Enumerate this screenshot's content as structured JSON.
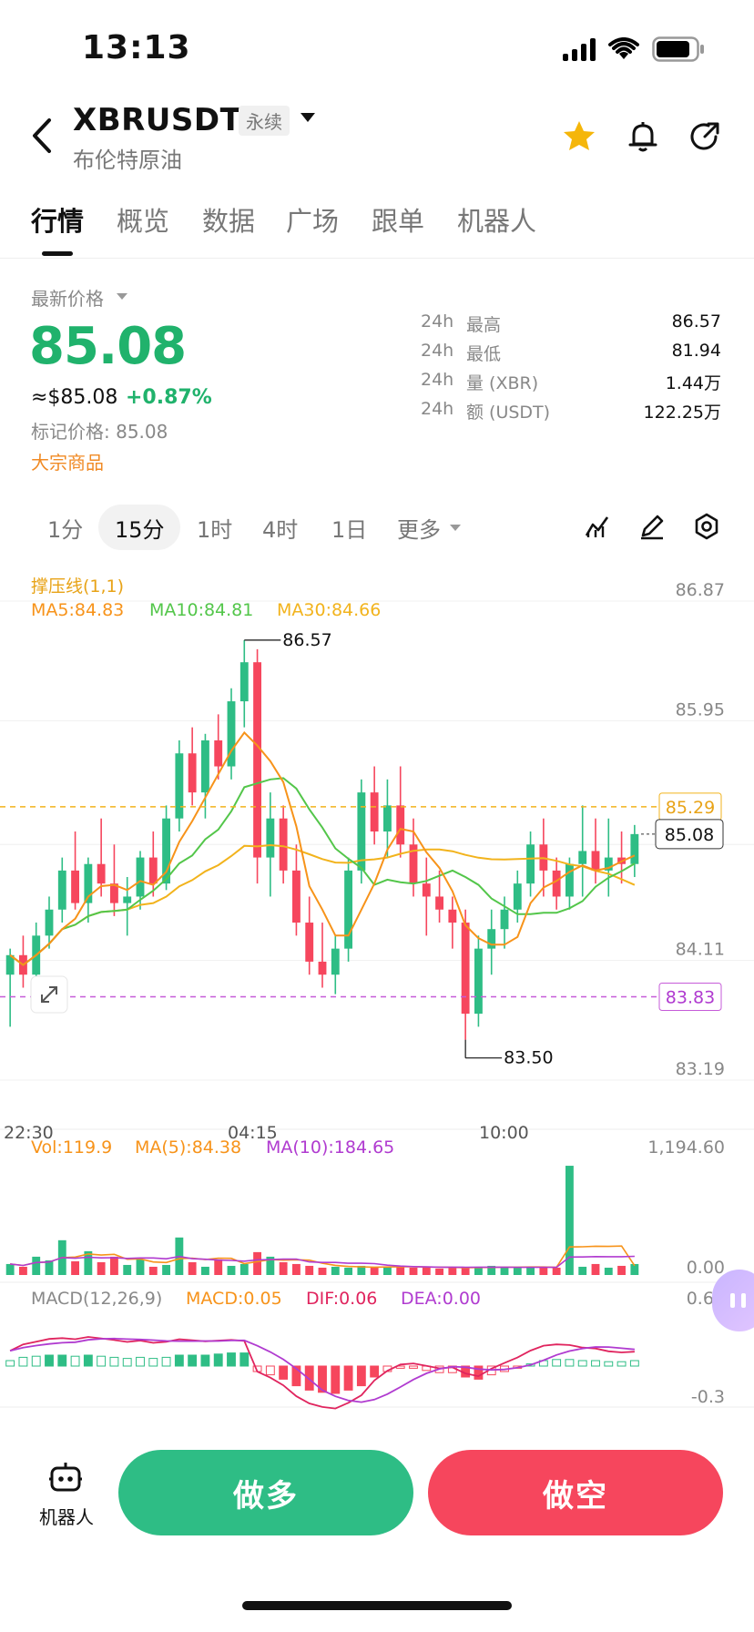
{
  "status": {
    "time": "13:13"
  },
  "header": {
    "symbol": "XBRUSDT",
    "contract_type": "永续",
    "name": "布伦特原油"
  },
  "tabs": [
    "行情",
    "概览",
    "数据",
    "广场",
    "跟单",
    "机器人"
  ],
  "price": {
    "label": "最新价格",
    "last": "85.08",
    "usd": "≈$85.08",
    "change": "+0.87%",
    "mark": "标记价格: 85.08",
    "category": "大宗商品"
  },
  "stats": [
    {
      "p": "24h",
      "label": "最高",
      "value": "86.57"
    },
    {
      "p": "24h",
      "label": "最低",
      "value": "81.94"
    },
    {
      "p": "24h",
      "label": "量 (XBR)",
      "value": "1.44万"
    },
    {
      "p": "24h",
      "label": "额 (USDT)",
      "value": "122.25万"
    }
  ],
  "intervals": [
    "1分",
    "15分",
    "1时",
    "4时",
    "1日",
    "更多"
  ],
  "colors": {
    "up": "#2ebd85",
    "down": "#f6465d",
    "ma5": "#f7931a",
    "ma10": "#53c64a",
    "ma30": "#f2b31c",
    "accent": "#f08a24",
    "purple": "#b03bd0"
  },
  "chart": {
    "indicator": "撑压线(1,1)",
    "ma5": "MA5:84.83",
    "ma10": "MA10:84.81",
    "ma30": "MA30:84.66",
    "y_ticks": [
      "86.87",
      "85.95",
      "84.11",
      "83.19"
    ],
    "x_ticks": [
      "22:30",
      "04:15",
      "10:00"
    ],
    "resistance": "85.29",
    "support": "83.83",
    "last_price": "85.08",
    "high_label": "86.57",
    "low_label": "83.50",
    "vol": {
      "label": "Vol:119.9",
      "ma5": "MA(5):84.38",
      "ma10": "MA(10):184.65",
      "top": "1,194.60",
      "bottom": "0.00"
    },
    "macd": {
      "label": "MACD(12,26,9)",
      "macd": "MACD:0.05",
      "dif": "DIF:0.06",
      "dea": "DEA:0.00",
      "top": "0.61",
      "bottom": "-0.3"
    }
  },
  "chart_data": {
    "type": "candlestick",
    "y_range": [
      83.19,
      86.87
    ],
    "candles": [
      [
        84.0,
        84.2,
        83.6,
        84.15
      ],
      [
        84.15,
        84.3,
        83.9,
        84.0
      ],
      [
        84.0,
        84.4,
        83.95,
        84.3
      ],
      [
        84.3,
        84.6,
        84.2,
        84.5
      ],
      [
        84.5,
        84.9,
        84.4,
        84.8
      ],
      [
        84.8,
        85.1,
        84.5,
        84.55
      ],
      [
        84.55,
        84.9,
        84.4,
        84.85
      ],
      [
        84.85,
        85.2,
        84.6,
        84.7
      ],
      [
        84.7,
        85.0,
        84.45,
        84.55
      ],
      [
        84.55,
        84.75,
        84.3,
        84.6
      ],
      [
        84.6,
        84.95,
        84.5,
        84.9
      ],
      [
        84.9,
        85.1,
        84.6,
        84.7
      ],
      [
        84.7,
        85.3,
        84.65,
        85.2
      ],
      [
        85.2,
        85.8,
        85.1,
        85.7
      ],
      [
        85.7,
        85.9,
        85.3,
        85.4
      ],
      [
        85.4,
        85.85,
        85.2,
        85.8
      ],
      [
        85.8,
        86.0,
        85.5,
        85.6
      ],
      [
        85.6,
        86.2,
        85.5,
        86.1
      ],
      [
        86.1,
        86.57,
        85.9,
        86.4
      ],
      [
        86.4,
        86.5,
        84.7,
        84.9
      ],
      [
        84.9,
        85.4,
        84.6,
        85.2
      ],
      [
        85.2,
        85.3,
        84.7,
        84.8
      ],
      [
        84.8,
        85.0,
        84.3,
        84.4
      ],
      [
        84.4,
        84.6,
        84.0,
        84.1
      ],
      [
        84.1,
        84.4,
        83.9,
        84.0
      ],
      [
        84.0,
        84.3,
        83.85,
        84.2
      ],
      [
        84.2,
        84.9,
        84.1,
        84.8
      ],
      [
        84.8,
        85.5,
        84.7,
        85.4
      ],
      [
        85.4,
        85.6,
        85.0,
        85.1
      ],
      [
        85.1,
        85.5,
        84.9,
        85.3
      ],
      [
        85.3,
        85.6,
        84.9,
        85.0
      ],
      [
        85.0,
        85.2,
        84.6,
        84.7
      ],
      [
        84.7,
        84.9,
        84.3,
        84.6
      ],
      [
        84.6,
        84.8,
        84.4,
        84.5
      ],
      [
        84.5,
        84.6,
        84.2,
        84.4
      ],
      [
        84.4,
        84.5,
        83.5,
        83.7
      ],
      [
        83.7,
        84.3,
        83.6,
        84.2
      ],
      [
        84.2,
        84.5,
        84.0,
        84.35
      ],
      [
        84.35,
        84.6,
        84.2,
        84.5
      ],
      [
        84.5,
        84.8,
        84.4,
        84.7
      ],
      [
        84.7,
        85.1,
        84.6,
        85.0
      ],
      [
        85.0,
        85.2,
        84.6,
        84.8
      ],
      [
        84.8,
        84.9,
        84.5,
        84.6
      ],
      [
        84.6,
        84.9,
        84.5,
        84.85
      ],
      [
        84.85,
        85.3,
        84.6,
        84.95
      ],
      [
        84.95,
        85.2,
        84.7,
        84.8
      ],
      [
        84.8,
        85.2,
        84.6,
        84.9
      ],
      [
        84.9,
        85.1,
        84.7,
        84.85
      ],
      [
        84.85,
        85.15,
        84.75,
        85.08
      ]
    ],
    "volume": [
      120,
      90,
      200,
      160,
      380,
      150,
      260,
      140,
      200,
      110,
      170,
      90,
      110,
      410,
      140,
      90,
      170,
      100,
      120,
      250,
      200,
      140,
      120,
      100,
      80,
      90,
      80,
      100,
      80,
      90,
      100,
      80,
      90,
      70,
      80,
      80,
      90,
      100,
      80,
      80,
      90,
      90,
      80,
      1194,
      90,
      120,
      80,
      100,
      119.9
    ],
    "macd_hist": [
      0.05,
      0.08,
      0.09,
      0.1,
      0.1,
      0.09,
      0.1,
      0.09,
      0.08,
      0.07,
      0.08,
      0.07,
      0.08,
      0.1,
      0.1,
      0.1,
      0.11,
      0.12,
      0.12,
      -0.05,
      -0.08,
      -0.12,
      -0.18,
      -0.22,
      -0.24,
      -0.25,
      -0.22,
      -0.18,
      -0.1,
      -0.05,
      -0.02,
      -0.02,
      -0.04,
      -0.06,
      -0.06,
      -0.1,
      -0.12,
      -0.08,
      -0.05,
      -0.02,
      0.02,
      0.05,
      0.06,
      0.06,
      0.05,
      0.05,
      0.04,
      0.04,
      0.05
    ]
  }
}
